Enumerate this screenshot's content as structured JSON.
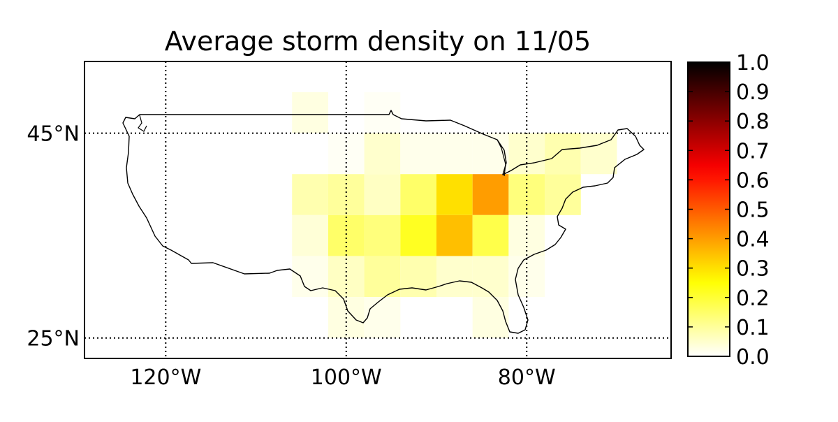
{
  "chart_data": {
    "type": "heatmap",
    "title": "Average storm density on 11/05",
    "projection": "plate-carree",
    "extent": {
      "lon": [
        -129,
        -64
      ],
      "lat": [
        23,
        52
      ]
    },
    "x_ticks": [
      {
        "lon": -120,
        "label": "120°W"
      },
      {
        "lon": -100,
        "label": "100°W"
      },
      {
        "lon": -80,
        "label": "80°W"
      }
    ],
    "y_ticks": [
      {
        "lat": 45,
        "label": "45°N"
      },
      {
        "lat": 25,
        "label": "25°N"
      }
    ],
    "grid": "dotted",
    "colormap": "hot_r",
    "colorbar": {
      "range": [
        0,
        1
      ],
      "ticks": [
        "0.0",
        "0.1",
        "0.2",
        "0.3",
        "0.4",
        "0.5",
        "0.6",
        "0.7",
        "0.8",
        "0.9",
        "1.0"
      ]
    },
    "cell_size_deg": 4,
    "cells": [
      {
        "lon": -104,
        "lat": 47,
        "value": 0.03
      },
      {
        "lon": -100,
        "lat": 43,
        "value": 0.01
      },
      {
        "lon": -96,
        "lat": 47,
        "value": 0.01
      },
      {
        "lon": -96,
        "lat": 43,
        "value": 0.05
      },
      {
        "lon": -92,
        "lat": 43,
        "value": 0.02
      },
      {
        "lon": -88,
        "lat": 43,
        "value": 0.02
      },
      {
        "lon": -84,
        "lat": 43,
        "value": 0.02
      },
      {
        "lon": -80,
        "lat": 43,
        "value": 0.05
      },
      {
        "lon": -76,
        "lat": 43,
        "value": 0.08
      },
      {
        "lon": -72,
        "lat": 43,
        "value": 0.05
      },
      {
        "lon": -104,
        "lat": 39,
        "value": 0.08
      },
      {
        "lon": -100,
        "lat": 39,
        "value": 0.1
      },
      {
        "lon": -96,
        "lat": 39,
        "value": 0.06
      },
      {
        "lon": -92,
        "lat": 39,
        "value": 0.15
      },
      {
        "lon": -88,
        "lat": 39,
        "value": 0.3
      },
      {
        "lon": -84,
        "lat": 39,
        "value": 0.4
      },
      {
        "lon": -80,
        "lat": 39,
        "value": 0.13
      },
      {
        "lon": -76,
        "lat": 39,
        "value": 0.1
      },
      {
        "lon": -104,
        "lat": 35,
        "value": 0.04
      },
      {
        "lon": -100,
        "lat": 35,
        "value": 0.15
      },
      {
        "lon": -96,
        "lat": 35,
        "value": 0.13
      },
      {
        "lon": -92,
        "lat": 35,
        "value": 0.22
      },
      {
        "lon": -88,
        "lat": 35,
        "value": 0.35
      },
      {
        "lon": -84,
        "lat": 35,
        "value": 0.18
      },
      {
        "lon": -80,
        "lat": 35,
        "value": 0.03
      },
      {
        "lon": -104,
        "lat": 31,
        "value": 0.02
      },
      {
        "lon": -100,
        "lat": 31,
        "value": 0.06
      },
      {
        "lon": -96,
        "lat": 31,
        "value": 0.1
      },
      {
        "lon": -92,
        "lat": 31,
        "value": 0.08
      },
      {
        "lon": -88,
        "lat": 31,
        "value": 0.05
      },
      {
        "lon": -84,
        "lat": 31,
        "value": 0.05
      },
      {
        "lon": -80,
        "lat": 31,
        "value": 0.02
      },
      {
        "lon": -100,
        "lat": 27,
        "value": 0.03
      },
      {
        "lon": -96,
        "lat": 27,
        "value": 0.02
      },
      {
        "lon": -84,
        "lat": 27,
        "value": 0.03
      }
    ]
  }
}
